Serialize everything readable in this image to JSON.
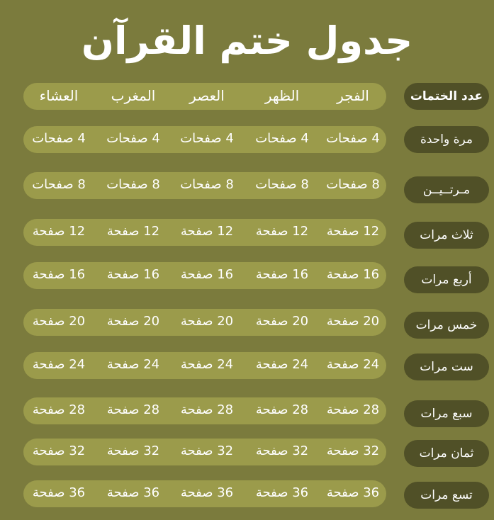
{
  "title": "جدول ختم القرآن",
  "header": {
    "label": "عدد الختمات",
    "columns": [
      "الفجر",
      "الظهر",
      "العصر",
      "المغرب",
      "العشاء"
    ]
  },
  "rows": [
    {
      "label": "مرة واحدة",
      "value": "4 صفحات"
    },
    {
      "label": "مـرتــيــن",
      "value": "8 صفحات"
    },
    {
      "label": "ثلاث مرات",
      "value": "12 صفحة"
    },
    {
      "label": "أربع مرات",
      "value": "16 صفحة"
    },
    {
      "label": "خمس مرات",
      "value": "20 صفحة"
    },
    {
      "label": "ست مرات",
      "value": "24 صفحة"
    },
    {
      "label": "سبع مرات",
      "value": "28 صفحة"
    },
    {
      "label": "ثمان مرات",
      "value": "32 صفحة"
    },
    {
      "label": "تسع مرات",
      "value": "36 صفحة"
    }
  ],
  "colors": {
    "background": "#7b7b3d",
    "cell": "#9b9b4b",
    "label": "#505027"
  }
}
